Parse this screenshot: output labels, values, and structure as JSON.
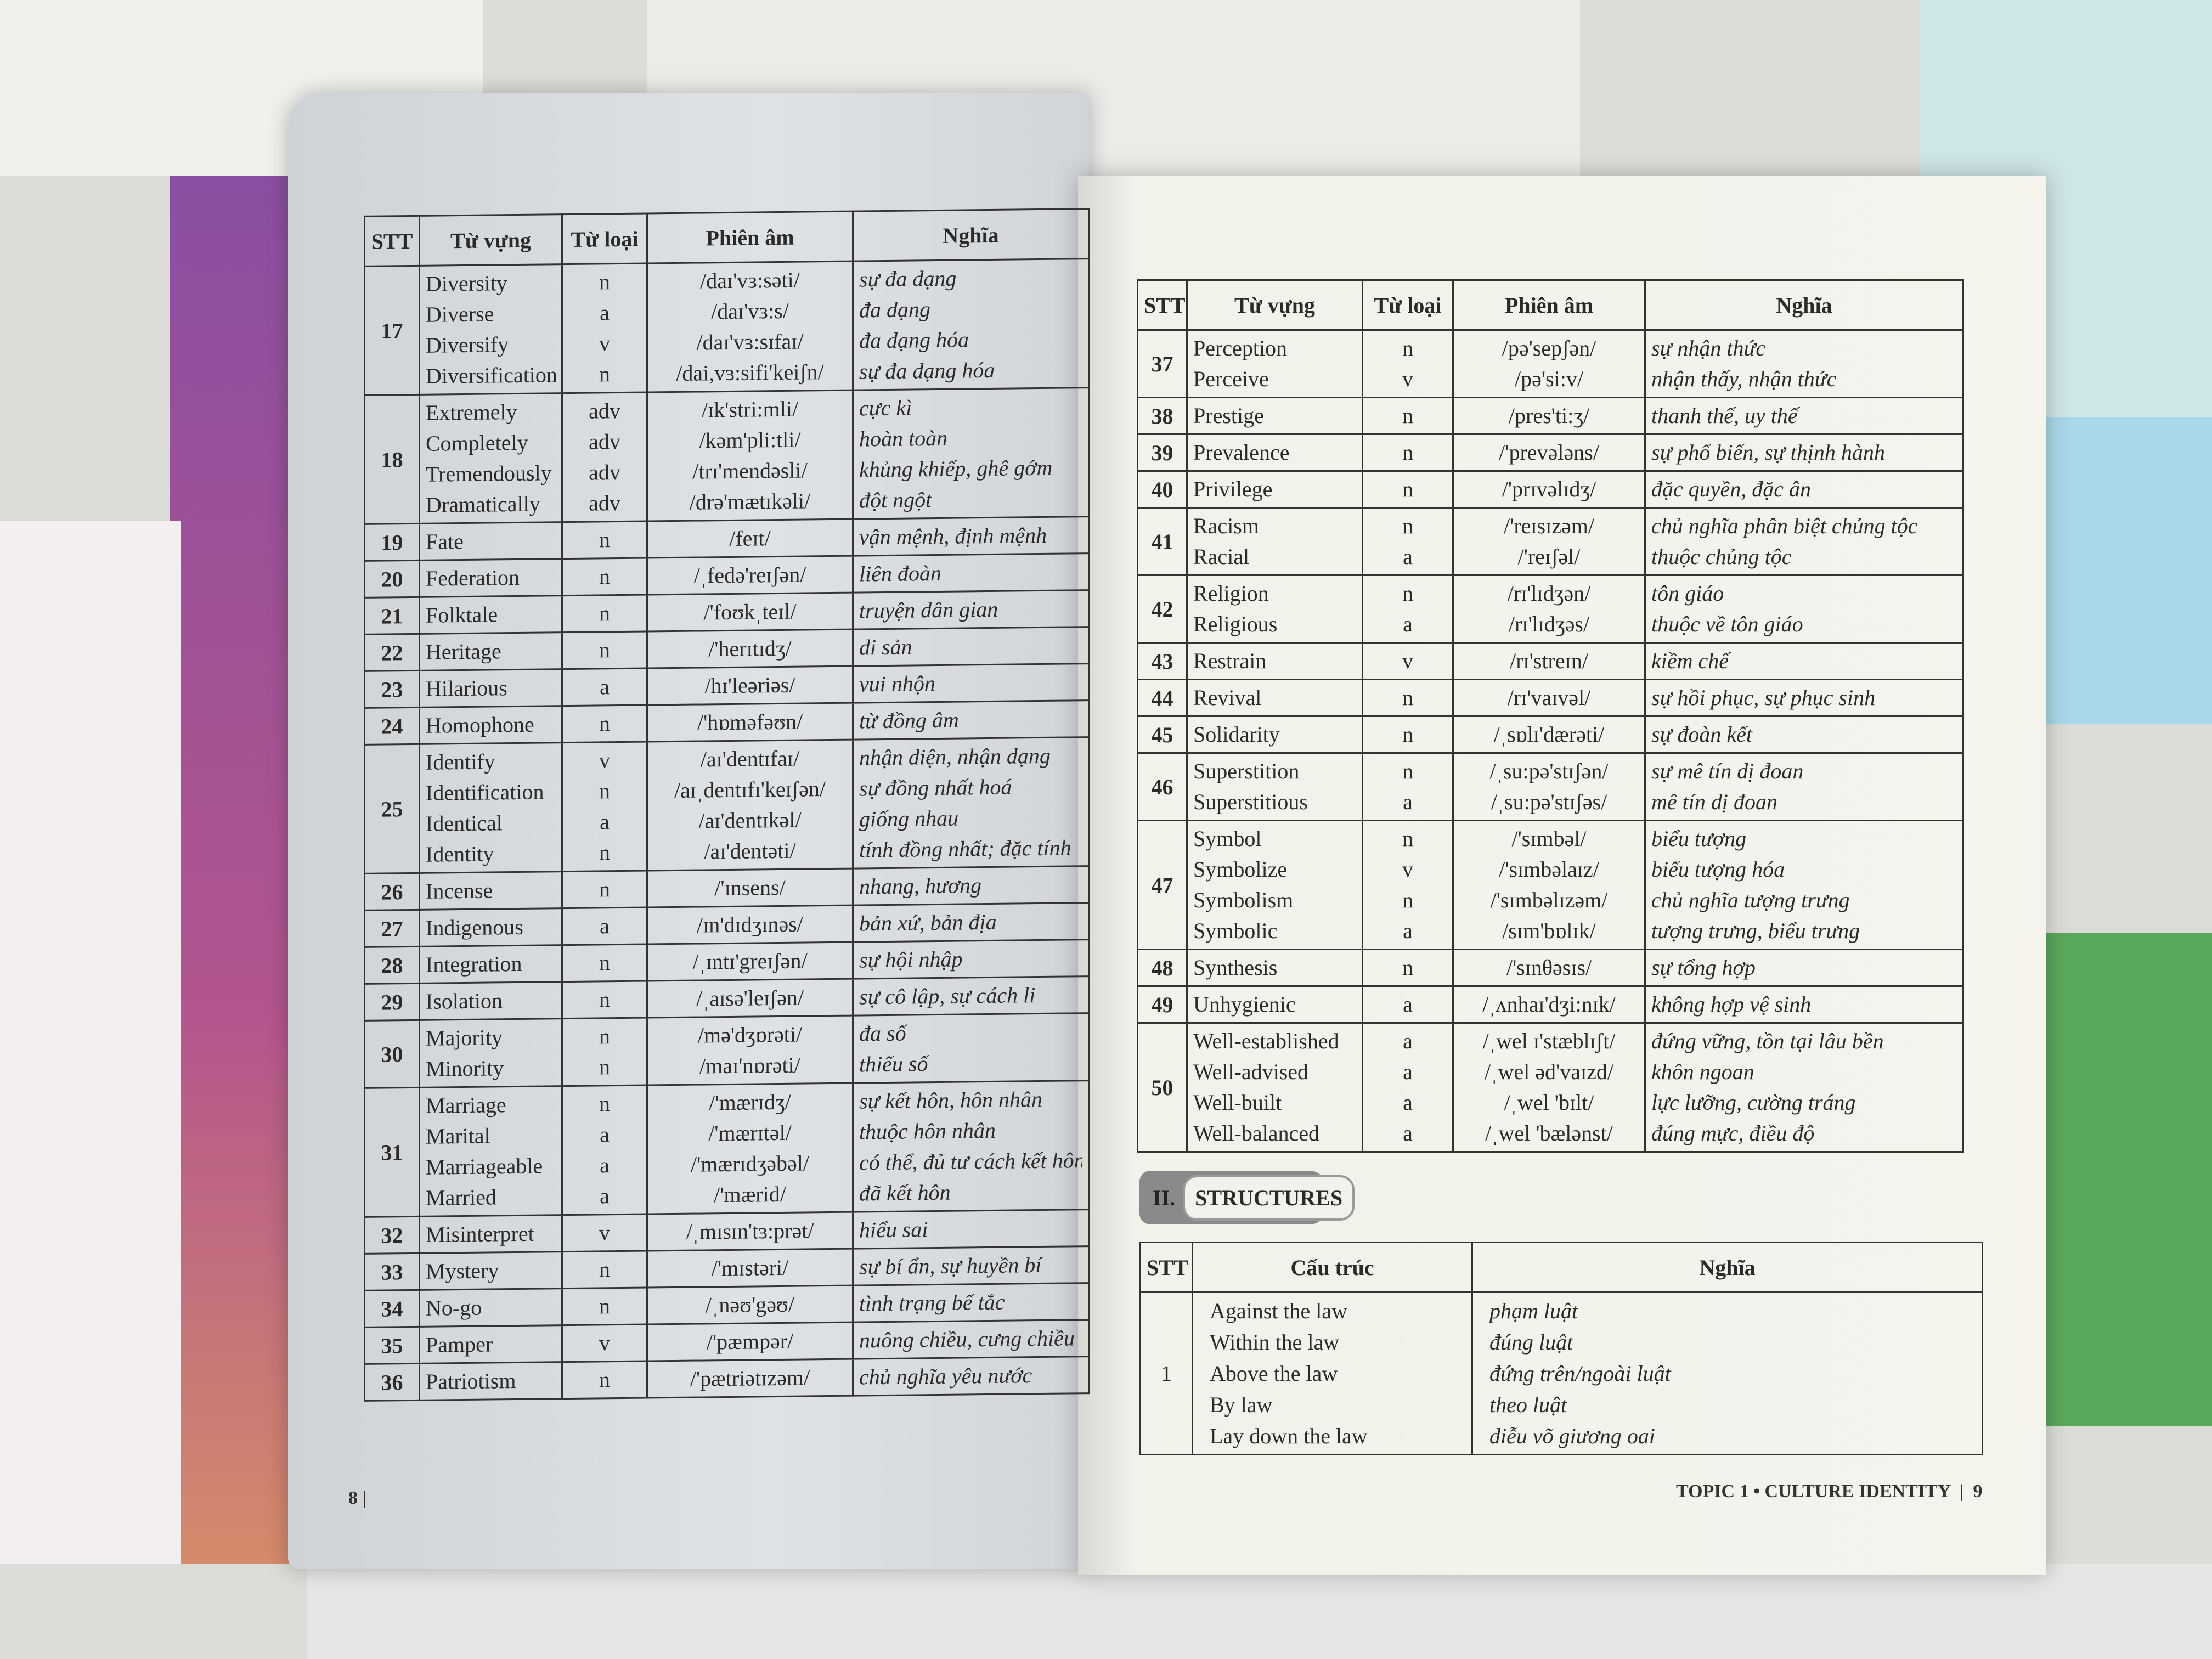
{
  "left_page": {
    "page_number": "8",
    "headers": [
      "STT",
      "Từ vựng",
      "Từ loại",
      "Phiên âm",
      "Nghĩa"
    ],
    "rows": [
      {
        "stt": "17",
        "entries": [
          {
            "word": "Diversity",
            "pos": "n",
            "ipa": "/daɪ'vɜ:səti/",
            "meaning": "sự đa dạng"
          },
          {
            "word": "Diverse",
            "pos": "a",
            "ipa": "/daɪ'vɜ:s/",
            "meaning": "đa dạng"
          },
          {
            "word": "Diversify",
            "pos": "v",
            "ipa": "/daɪ'vɜ:sɪfaɪ/",
            "meaning": "đa dạng hóa"
          },
          {
            "word": "Diversification",
            "pos": "n",
            "ipa": "/dai,vɜ:sifi'keiʃn/",
            "meaning": "sự đa dạng hóa"
          }
        ]
      },
      {
        "stt": "18",
        "entries": [
          {
            "word": "Extremely",
            "pos": "adv",
            "ipa": "/ɪk'stri:mli/",
            "meaning": "cực kì"
          },
          {
            "word": "Completely",
            "pos": "adv",
            "ipa": "/kəm'pli:tli/",
            "meaning": "hoàn toàn"
          },
          {
            "word": "Tremendously",
            "pos": "adv",
            "ipa": "/trɪ'mendəsli/",
            "meaning": "khủng khiếp, ghê gớm"
          },
          {
            "word": "Dramatically",
            "pos": "adv",
            "ipa": "/drə'mætɪkəli/",
            "meaning": "đột ngột"
          }
        ]
      },
      {
        "stt": "19",
        "entries": [
          {
            "word": "Fate",
            "pos": "n",
            "ipa": "/feɪt/",
            "meaning": "vận mệnh, định mệnh"
          }
        ]
      },
      {
        "stt": "20",
        "entries": [
          {
            "word": "Federation",
            "pos": "n",
            "ipa": "/ˌfedə'reɪʃən/",
            "meaning": "liên đoàn"
          }
        ]
      },
      {
        "stt": "21",
        "entries": [
          {
            "word": "Folktale",
            "pos": "n",
            "ipa": "/'foʊkˌteɪl/",
            "meaning": "truyện dân gian"
          }
        ]
      },
      {
        "stt": "22",
        "entries": [
          {
            "word": "Heritage",
            "pos": "n",
            "ipa": "/'herɪtɪdʒ/",
            "meaning": "di sản"
          }
        ]
      },
      {
        "stt": "23",
        "entries": [
          {
            "word": "Hilarious",
            "pos": "a",
            "ipa": "/hɪ'leəriəs/",
            "meaning": "vui nhộn"
          }
        ]
      },
      {
        "stt": "24",
        "entries": [
          {
            "word": "Homophone",
            "pos": "n",
            "ipa": "/'hɒməfəʊn/",
            "meaning": "từ đồng âm"
          }
        ]
      },
      {
        "stt": "25",
        "entries": [
          {
            "word": "Identify",
            "pos": "v",
            "ipa": "/aɪ'dentɪfaɪ/",
            "meaning": "nhận diện, nhận dạng"
          },
          {
            "word": "Identification",
            "pos": "n",
            "ipa": "/aɪˌdentɪfɪ'keɪʃən/",
            "meaning": "sự đồng nhất hoá"
          },
          {
            "word": "Identical",
            "pos": "a",
            "ipa": "/aɪ'dentɪkəl/",
            "meaning": "giống nhau"
          },
          {
            "word": "Identity",
            "pos": "n",
            "ipa": "/aɪ'dentəti/",
            "meaning": "tính đồng nhất; đặc tính"
          }
        ]
      },
      {
        "stt": "26",
        "entries": [
          {
            "word": "Incense",
            "pos": "n",
            "ipa": "/'ɪnsens/",
            "meaning": "nhang, hương"
          }
        ]
      },
      {
        "stt": "27",
        "entries": [
          {
            "word": "Indigenous",
            "pos": "a",
            "ipa": "/ɪn'dɪdʒɪnəs/",
            "meaning": "bản xứ, bản địa"
          }
        ]
      },
      {
        "stt": "28",
        "entries": [
          {
            "word": "Integration",
            "pos": "n",
            "ipa": "/ˌɪntɪ'greɪʃən/",
            "meaning": "sự hội nhập"
          }
        ]
      },
      {
        "stt": "29",
        "entries": [
          {
            "word": "Isolation",
            "pos": "n",
            "ipa": "/ˌaɪsə'leɪʃən/",
            "meaning": "sự cô lập, sự cách li"
          }
        ]
      },
      {
        "stt": "30",
        "entries": [
          {
            "word": "Majority",
            "pos": "n",
            "ipa": "/mə'dʒɒrəti/",
            "meaning": "đa số"
          },
          {
            "word": "Minority",
            "pos": "n",
            "ipa": "/maɪ'nɒrəti/",
            "meaning": "thiểu số"
          }
        ]
      },
      {
        "stt": "31",
        "entries": [
          {
            "word": "Marriage",
            "pos": "n",
            "ipa": "/'mærɪdʒ/",
            "meaning": "sự kết hôn, hôn nhân"
          },
          {
            "word": "Marital",
            "pos": "a",
            "ipa": "/'mærɪtəl/",
            "meaning": "thuộc hôn nhân"
          },
          {
            "word": "Marriageable",
            "pos": "a",
            "ipa": "/'mærɪdʒəbəl/",
            "meaning": "có thể, đủ tư cách kết hôn"
          },
          {
            "word": "Married",
            "pos": "a",
            "ipa": "/'mærid/",
            "meaning": "đã kết hôn"
          }
        ]
      },
      {
        "stt": "32",
        "entries": [
          {
            "word": "Misinterpret",
            "pos": "v",
            "ipa": "/ˌmɪsɪn'tɜ:prət/",
            "meaning": "hiểu sai"
          }
        ]
      },
      {
        "stt": "33",
        "entries": [
          {
            "word": "Mystery",
            "pos": "n",
            "ipa": "/'mɪstəri/",
            "meaning": "sự bí ẩn, sự huyền bí"
          }
        ]
      },
      {
        "stt": "34",
        "entries": [
          {
            "word": "No-go",
            "pos": "n",
            "ipa": "/ˌnəʊ'gəʊ/",
            "meaning": "tình trạng bế tắc"
          }
        ]
      },
      {
        "stt": "35",
        "entries": [
          {
            "word": "Pamper",
            "pos": "v",
            "ipa": "/'pæmpər/",
            "meaning": "nuông chiều, cưng chiều"
          }
        ]
      },
      {
        "stt": "36",
        "entries": [
          {
            "word": "Patriotism",
            "pos": "n",
            "ipa": "/'pætriətɪzəm/",
            "meaning": "chủ nghĩa yêu nước"
          }
        ]
      }
    ]
  },
  "right_page": {
    "page_number": "9",
    "running_title": "TOPIC 1 • CULTURE IDENTITY",
    "headers": [
      "STT",
      "Từ vựng",
      "Từ loại",
      "Phiên âm",
      "Nghĩa"
    ],
    "rows": [
      {
        "stt": "37",
        "entries": [
          {
            "word": "Perception",
            "pos": "n",
            "ipa": "/pə'sepʃən/",
            "meaning": "sự nhận thức"
          },
          {
            "word": "Perceive",
            "pos": "v",
            "ipa": "/pə'si:v/",
            "meaning": "nhận thấy, nhận thức"
          }
        ]
      },
      {
        "stt": "38",
        "entries": [
          {
            "word": "Prestige",
            "pos": "n",
            "ipa": "/pres'ti:ʒ/",
            "meaning": "thanh thế, uy thế"
          }
        ]
      },
      {
        "stt": "39",
        "entries": [
          {
            "word": "Prevalence",
            "pos": "n",
            "ipa": "/'prevələns/",
            "meaning": "sự phổ biến, sự thịnh hành"
          }
        ]
      },
      {
        "stt": "40",
        "entries": [
          {
            "word": "Privilege",
            "pos": "n",
            "ipa": "/'prɪvəlɪdʒ/",
            "meaning": "đặc quyền, đặc ân"
          }
        ]
      },
      {
        "stt": "41",
        "entries": [
          {
            "word": "Racism",
            "pos": "n",
            "ipa": "/'reɪsɪzəm/",
            "meaning": "chủ nghĩa phân biệt chủng tộc"
          },
          {
            "word": "Racial",
            "pos": "a",
            "ipa": "/'reɪʃəl/",
            "meaning": "thuộc chủng tộc"
          }
        ]
      },
      {
        "stt": "42",
        "entries": [
          {
            "word": "Religion",
            "pos": "n",
            "ipa": "/rɪ'lɪdʒən/",
            "meaning": "tôn giáo"
          },
          {
            "word": "Religious",
            "pos": "a",
            "ipa": "/rɪ'lɪdʒəs/",
            "meaning": "thuộc về tôn giáo"
          }
        ]
      },
      {
        "stt": "43",
        "entries": [
          {
            "word": "Restrain",
            "pos": "v",
            "ipa": "/rɪ'streɪn/",
            "meaning": "kiềm chế"
          }
        ]
      },
      {
        "stt": "44",
        "entries": [
          {
            "word": "Revival",
            "pos": "n",
            "ipa": "/rɪ'vaɪvəl/",
            "meaning": "sự hồi phục, sự phục sinh"
          }
        ]
      },
      {
        "stt": "45",
        "entries": [
          {
            "word": "Solidarity",
            "pos": "n",
            "ipa": "/ˌsɒlɪ'dærəti/",
            "meaning": "sự đoàn kết"
          }
        ]
      },
      {
        "stt": "46",
        "entries": [
          {
            "word": "Superstition",
            "pos": "n",
            "ipa": "/ˌsu:pə'stɪʃən/",
            "meaning": "sự mê tín dị đoan"
          },
          {
            "word": "Superstitious",
            "pos": "a",
            "ipa": "/ˌsu:pə'stɪʃəs/",
            "meaning": "mê tín dị đoan"
          }
        ]
      },
      {
        "stt": "47",
        "entries": [
          {
            "word": "Symbol",
            "pos": "n",
            "ipa": "/'sɪmbəl/",
            "meaning": "biểu tượng"
          },
          {
            "word": "Symbolize",
            "pos": "v",
            "ipa": "/'sɪmbəlaɪz/",
            "meaning": "biểu tượng hóa"
          },
          {
            "word": "Symbolism",
            "pos": "n",
            "ipa": "/'sɪmbəlɪzəm/",
            "meaning": "chủ nghĩa tượng trưng"
          },
          {
            "word": "Symbolic",
            "pos": "a",
            "ipa": "/sɪm'bɒlɪk/",
            "meaning": "tượng trưng, biểu trưng"
          }
        ]
      },
      {
        "stt": "48",
        "entries": [
          {
            "word": "Synthesis",
            "pos": "n",
            "ipa": "/'sɪnθəsɪs/",
            "meaning": "sự tổng hợp"
          }
        ]
      },
      {
        "stt": "49",
        "entries": [
          {
            "word": "Unhygienic",
            "pos": "a",
            "ipa": "/ˌʌnhaɪ'dʒi:nɪk/",
            "meaning": "không hợp vệ sinh"
          }
        ]
      },
      {
        "stt": "50",
        "entries": [
          {
            "word": "Well-established",
            "pos": "a",
            "ipa": "/ˌwel ɪ'stæblɪʃt/",
            "meaning": "đứng vững, tồn tại lâu bền"
          },
          {
            "word": "Well-advised",
            "pos": "a",
            "ipa": "/ˌwel əd'vaɪzd/",
            "meaning": "khôn ngoan"
          },
          {
            "word": "Well-built",
            "pos": "a",
            "ipa": "/ˌwel 'bɪlt/",
            "meaning": "lực lưỡng, cường tráng"
          },
          {
            "word": "Well-balanced",
            "pos": "a",
            "ipa": "/ˌwel 'bælənst/",
            "meaning": "đúng mực, điều độ"
          }
        ]
      }
    ],
    "structures": {
      "section_number": "II.",
      "section_title": "STRUCTURES",
      "headers": [
        "STT",
        "Cấu trúc",
        "Nghĩa"
      ],
      "rows": [
        {
          "stt": "1",
          "entries": [
            {
              "structure": "Against the law",
              "meaning": "phạm luật"
            },
            {
              "structure": "Within the law",
              "meaning": "đúng luật"
            },
            {
              "structure": "Above the law",
              "meaning": "đứng trên/ngoài luật"
            },
            {
              "structure": "By law",
              "meaning": "theo luật"
            },
            {
              "structure": "Lay down the law",
              "meaning": "diễu võ giương oai"
            }
          ]
        }
      ]
    }
  }
}
